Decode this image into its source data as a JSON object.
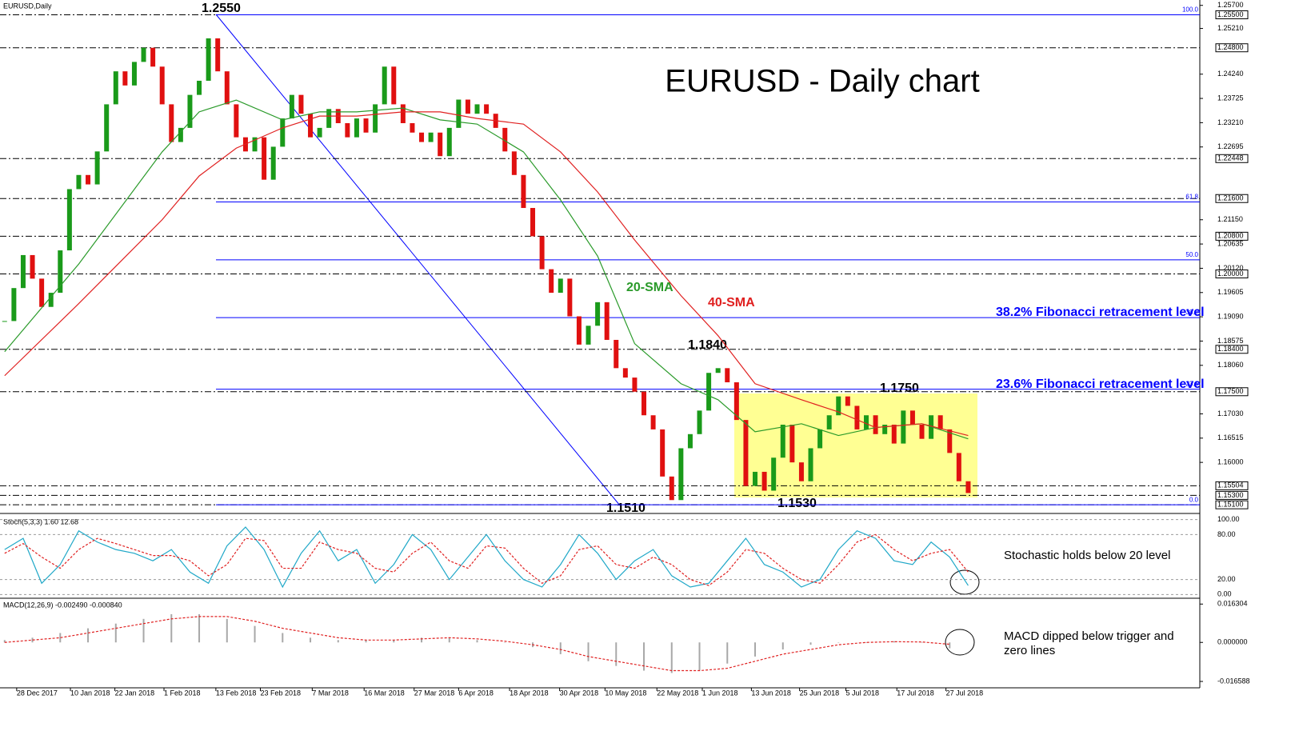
{
  "chart_data": {
    "type": "candlestick",
    "symbol": "EURUSD,Daily",
    "title": "EURUSD - Daily chart",
    "xlim": [
      -0.5,
      129
    ],
    "ylim": [
      1.1495,
      1.2578
    ],
    "up_color": "#1a9a1a",
    "down_color": "#e01010",
    "xticks": [
      {
        "value": 1.3,
        "label": "28 Dec 2017"
      },
      {
        "value": 7.1,
        "label": "10 Jan 2018"
      },
      {
        "value": 11.9,
        "label": "22 Jan 2018"
      },
      {
        "value": 17.2,
        "label": "1 Feb 2018"
      },
      {
        "value": 22.8,
        "label": "13 Feb 2018"
      },
      {
        "value": 27.6,
        "label": "23 Feb 2018"
      },
      {
        "value": 33.2,
        "label": "7 Mar 2018"
      },
      {
        "value": 38.8,
        "label": "16 Mar 2018"
      },
      {
        "value": 44.2,
        "label": "27 Mar 2018"
      },
      {
        "value": 49,
        "label": "6 Apr 2018"
      },
      {
        "value": 54.5,
        "label": "18 Apr 2018"
      },
      {
        "value": 59.9,
        "label": "30 Apr 2018"
      },
      {
        "value": 64.8,
        "label": "10 May 2018"
      },
      {
        "value": 70.4,
        "label": "22 May 2018"
      },
      {
        "value": 75.3,
        "label": "1 Jun 2018"
      },
      {
        "value": 80.6,
        "label": "13 Jun 2018"
      },
      {
        "value": 85.8,
        "label": "25 Jun 2018"
      },
      {
        "value": 90.8,
        "label": "5 Jul 2018"
      },
      {
        "value": 96.3,
        "label": "17 Jul 2018"
      },
      {
        "value": 101.6,
        "label": "27 Jul 2018"
      }
    ],
    "yticks": [
      {
        "value": 1.257,
        "label": "1.25700"
      },
      {
        "value": 1.2521,
        "label": "1.25210"
      },
      {
        "value": 1.2424,
        "label": "1.24240"
      },
      {
        "value": 1.23725,
        "label": "1.23725"
      },
      {
        "value": 1.2321,
        "label": "1.23210"
      },
      {
        "value": 1.22695,
        "label": "1.22695"
      },
      {
        "value": 1.2115,
        "label": "1.21150"
      },
      {
        "value": 1.20635,
        "label": "1.20635"
      },
      {
        "value": 1.2012,
        "label": "1.20120"
      },
      {
        "value": 1.19605,
        "label": "1.19605"
      },
      {
        "value": 1.1909,
        "label": "1.19090"
      },
      {
        "value": 1.18575,
        "label": "1.18575"
      },
      {
        "value": 1.1806,
        "label": "1.18060"
      },
      {
        "value": 1.1703,
        "label": "1.17030"
      },
      {
        "value": 1.16515,
        "label": "1.16515"
      },
      {
        "value": 1.16,
        "label": "1.16000"
      }
    ],
    "levels": [
      {
        "value": 1.255,
        "label": "1.25500"
      },
      {
        "value": 1.248,
        "label": "1.24800"
      },
      {
        "value": 1.22448,
        "label": "1.22448"
      },
      {
        "value": 1.216,
        "label": "1.21600"
      },
      {
        "value": 1.208,
        "label": "1.20800"
      },
      {
        "value": 1.2,
        "label": "1.20000"
      },
      {
        "value": 1.184,
        "label": "1.18400"
      },
      {
        "value": 1.175,
        "label": "1.17500"
      },
      {
        "value": 1.15504,
        "label": "1.15504"
      },
      {
        "value": 1.153,
        "label": "1.15300"
      },
      {
        "value": 1.151,
        "label": "1.15100"
      }
    ],
    "fib_color": "#0000ff",
    "fib": [
      {
        "value": 1.255,
        "label": "100.0"
      },
      {
        "value": 1.21527,
        "label": "61.8"
      },
      {
        "value": 1.203,
        "label": "50.0"
      },
      {
        "value": 1.19073,
        "label": "38.2"
      },
      {
        "value": 1.17554,
        "label": "23.6"
      },
      {
        "value": 1.151,
        "label": "0.0"
      }
    ],
    "close": [
      1.19,
      1.197,
      1.204,
      1.199,
      1.193,
      1.196,
      1.205,
      1.218,
      1.221,
      1.219,
      1.226,
      1.236,
      1.243,
      1.24,
      1.245,
      1.248,
      1.244,
      1.236,
      1.228,
      1.231,
      1.238,
      1.241,
      1.25,
      1.243,
      1.236,
      1.229,
      1.226,
      1.229,
      1.22,
      1.227,
      1.233,
      1.238,
      1.234,
      1.229,
      1.231,
      1.235,
      1.232,
      1.229,
      1.233,
      1.23,
      1.236,
      1.244,
      1.236,
      1.232,
      1.23,
      1.228,
      1.23,
      1.225,
      1.231,
      1.237,
      1.234,
      1.236,
      1.234,
      1.231,
      1.226,
      1.221,
      1.214,
      1.208,
      1.201,
      1.196,
      1.199,
      1.191,
      1.185,
      1.189,
      1.194,
      1.186,
      1.18,
      1.178,
      1.175,
      1.17,
      1.167,
      1.157,
      1.152,
      1.163,
      1.166,
      1.171,
      1.179,
      1.18,
      1.177,
      1.169,
      1.155,
      1.158,
      1.154,
      1.161,
      1.168,
      1.16,
      1.156,
      1.163,
      1.167,
      1.17,
      1.174,
      1.172,
      1.167,
      1.17,
      1.166,
      1.168,
      1.164,
      1.171,
      1.168,
      1.165,
      1.17,
      1.167,
      1.162,
      1.156,
      1.1535
    ],
    "sma": [
      {
        "name": "20-SMA",
        "color": "#2a9a2a",
        "x": [
          0,
          8,
          17,
          21,
          25,
          30,
          34,
          38,
          43,
          47,
          51,
          56,
          60,
          64,
          68,
          73,
          77,
          81,
          86,
          90,
          94,
          99,
          104
        ],
        "values": [
          1.1835,
          1.2021,
          1.2259,
          1.2344,
          1.2369,
          1.2327,
          1.2344,
          1.2344,
          1.2352,
          1.2327,
          1.2318,
          1.2259,
          1.2157,
          1.2038,
          1.1852,
          1.1767,
          1.1733,
          1.1665,
          1.1682,
          1.1657,
          1.1674,
          1.1682,
          1.165
        ]
      },
      {
        "name": "40-SMA",
        "color": "#e02020",
        "x": [
          0,
          8,
          17,
          21,
          25,
          30,
          34,
          38,
          43,
          47,
          51,
          56,
          60,
          64,
          68,
          73,
          77,
          81,
          86,
          90,
          94,
          99,
          104
        ],
        "values": [
          1.1784,
          1.1937,
          1.2115,
          1.2208,
          1.2267,
          1.231,
          1.2335,
          1.2335,
          1.2344,
          1.2344,
          1.233,
          1.2318,
          1.2259,
          1.2174,
          1.2072,
          1.1954,
          1.1869,
          1.1767,
          1.1733,
          1.1707,
          1.1674,
          1.1682,
          1.1657
        ]
      }
    ],
    "annotations": [
      "1.2550",
      "1.1840",
      "1.1750",
      "1.1510",
      "1.1530"
    ],
    "fib_notes": [
      "38.2% Fibonacci retracement level",
      "23.6% Fibonacci retracement level"
    ],
    "stochastic": {
      "title": "Stoch(5,3,3) 1.60 12.68",
      "note": "Stochastic holds below 20 level",
      "ylim": [
        -5,
        105
      ],
      "yticks": [
        {
          "value": 100,
          "label": "100.00"
        },
        {
          "value": 80,
          "label": "80.00"
        },
        {
          "value": 20,
          "label": "20.00"
        },
        {
          "value": 0,
          "label": "0.00"
        }
      ],
      "x": [
        0,
        2,
        4,
        6,
        8,
        10,
        12,
        14,
        16,
        18,
        20,
        22,
        24,
        26,
        28,
        30,
        32,
        34,
        36,
        38,
        40,
        42,
        44,
        46,
        48,
        50,
        52,
        54,
        56,
        58,
        60,
        62,
        64,
        66,
        68,
        70,
        72,
        74,
        76,
        78,
        80,
        82,
        84,
        86,
        88,
        90,
        92,
        94,
        96,
        98,
        100,
        102,
        104
      ],
      "series": [
        {
          "color": "#20a8c8",
          "values": [
            60,
            75,
            15,
            40,
            85,
            70,
            60,
            55,
            45,
            60,
            30,
            15,
            65,
            90,
            60,
            10,
            55,
            85,
            45,
            60,
            15,
            40,
            80,
            60,
            20,
            50,
            80,
            45,
            20,
            10,
            40,
            80,
            55,
            20,
            45,
            60,
            25,
            10,
            15,
            45,
            75,
            40,
            30,
            10,
            20,
            60,
            85,
            75,
            45,
            40,
            70,
            50,
            12
          ]
        },
        {
          "color": "#e02020",
          "values": [
            55,
            68,
            50,
            35,
            60,
            75,
            68,
            60,
            52,
            52,
            45,
            25,
            40,
            75,
            72,
            35,
            35,
            70,
            60,
            55,
            35,
            30,
            55,
            70,
            45,
            35,
            65,
            62,
            35,
            15,
            25,
            60,
            65,
            40,
            35,
            50,
            40,
            20,
            12,
            30,
            60,
            55,
            35,
            20,
            15,
            40,
            70,
            80,
            60,
            45,
            55,
            60,
            30
          ]
        }
      ]
    },
    "macd": {
      "title": "MACD(12,26,9) -0.002490 -0.000840",
      "note": "MACD dipped below trigger and zero lines",
      "ylim": [
        -0.0193,
        0.0181
      ],
      "yticks": [
        {
          "value": 0.016304,
          "label": "0.016304"
        },
        {
          "value": 0,
          "label": "0.000000"
        },
        {
          "value": -0.016588,
          "label": "-0.016588"
        }
      ],
      "x": [
        0,
        3,
        6,
        9,
        12,
        15,
        18,
        21,
        24,
        27,
        30,
        33,
        36,
        39,
        42,
        45,
        48,
        51,
        54,
        57,
        60,
        63,
        66,
        69,
        72,
        75,
        78,
        81,
        84,
        87,
        90,
        93,
        96,
        99,
        102
      ],
      "histogram_color": "#a8a8a8",
      "histogram": [
        0.001,
        0.002,
        0.004,
        0.006,
        0.008,
        0.01,
        0.012,
        0.012,
        0.01,
        0.007,
        0.004,
        0.002,
        0.001,
        0.001,
        0.001,
        0.002,
        0.002,
        0.001,
        0,
        -0.002,
        -0.005,
        -0.008,
        -0.01,
        -0.012,
        -0.013,
        -0.012,
        -0.009,
        -0.006,
        -0.003,
        -0.001,
        0,
        0,
        0.0005,
        0,
        -0.0025
      ],
      "signal_color": "#e02020",
      "signal": [
        0,
        0.001,
        0.002,
        0.004,
        0.006,
        0.008,
        0.01,
        0.011,
        0.011,
        0.009,
        0.006,
        0.004,
        0.002,
        0.001,
        0.001,
        0.0015,
        0.002,
        0.0015,
        0.0005,
        -0.001,
        -0.003,
        -0.006,
        -0.008,
        -0.01,
        -0.012,
        -0.012,
        -0.011,
        -0.008,
        -0.005,
        -0.003,
        -0.001,
        0,
        0.0003,
        0.0002,
        -0.0008
      ]
    }
  }
}
